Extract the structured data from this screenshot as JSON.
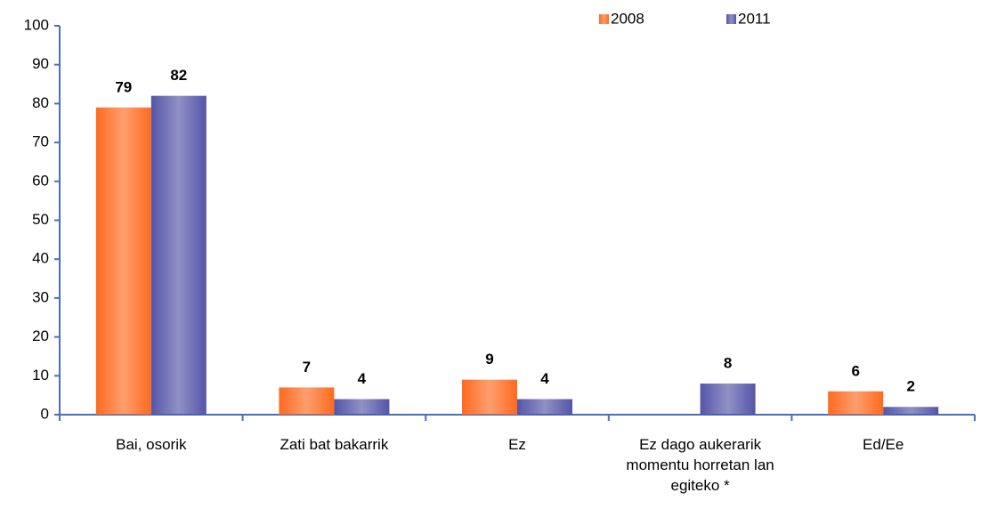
{
  "chart_data": {
    "type": "bar",
    "categories": [
      "Bai, osorik",
      "Zati bat bakarrik",
      "Ez",
      "Ez dago aukerarik momentu horretan lan egiteko *",
      "Ed/Ee"
    ],
    "series": [
      {
        "name": "2008",
        "color": "#ff6a1f",
        "values": [
          79,
          7,
          9,
          null,
          6
        ]
      },
      {
        "name": "2011",
        "color": "#5555a8",
        "values": [
          82,
          4,
          4,
          8,
          2
        ]
      }
    ],
    "ylim": [
      0,
      100
    ],
    "yticks": [
      0,
      10,
      20,
      30,
      40,
      50,
      60,
      70,
      80,
      90,
      100
    ],
    "grid": false,
    "legend": "top-right"
  }
}
